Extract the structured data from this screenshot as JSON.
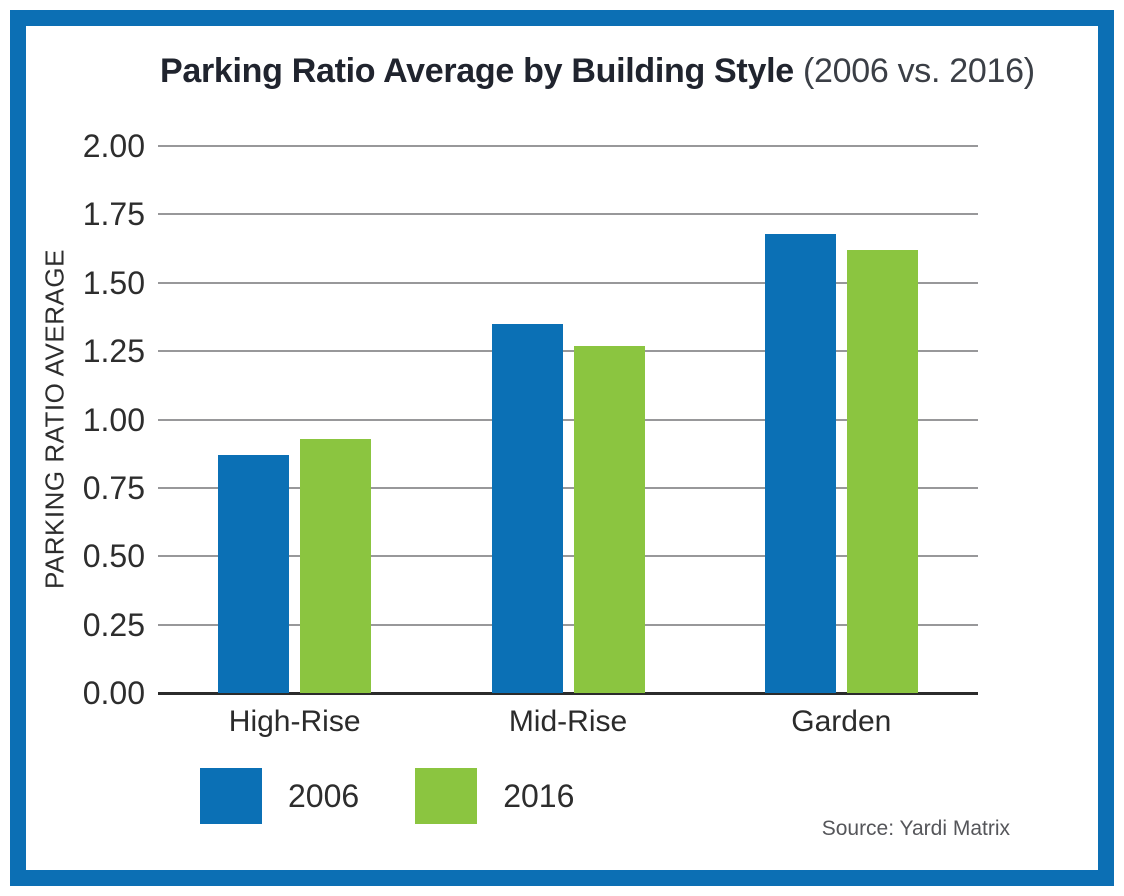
{
  "frame": {
    "border_color": "#0c6fb4"
  },
  "title": {
    "main": "Parking Ratio Average by Building Style",
    "suffix": " (2006 vs. 2016)"
  },
  "source": "Source: Yardi Matrix",
  "chart_data": {
    "type": "bar",
    "title": "Parking Ratio Average by Building Style (2006 vs. 2016)",
    "categories": [
      "High-Rise",
      "Mid-Rise",
      "Garden"
    ],
    "series": [
      {
        "name": "2006",
        "color": "#0b70b5",
        "values": [
          0.87,
          1.35,
          1.68
        ]
      },
      {
        "name": "2016",
        "color": "#8bc540",
        "values": [
          0.93,
          1.27,
          1.62
        ]
      }
    ],
    "xlabel": "",
    "ylabel": "PARKING RATIO AVERAGE",
    "ylim": [
      0,
      2
    ],
    "ytick_step": 0.25,
    "yticks": [
      "2.00",
      "1.75",
      "1.50",
      "1.25",
      "1.00",
      "0.75",
      "0.50",
      "0.25",
      "0.00"
    ],
    "grid": true,
    "gridline_color": "#98989a",
    "axis_color": "#2b2b2b",
    "legend_position": "bottom-left"
  }
}
